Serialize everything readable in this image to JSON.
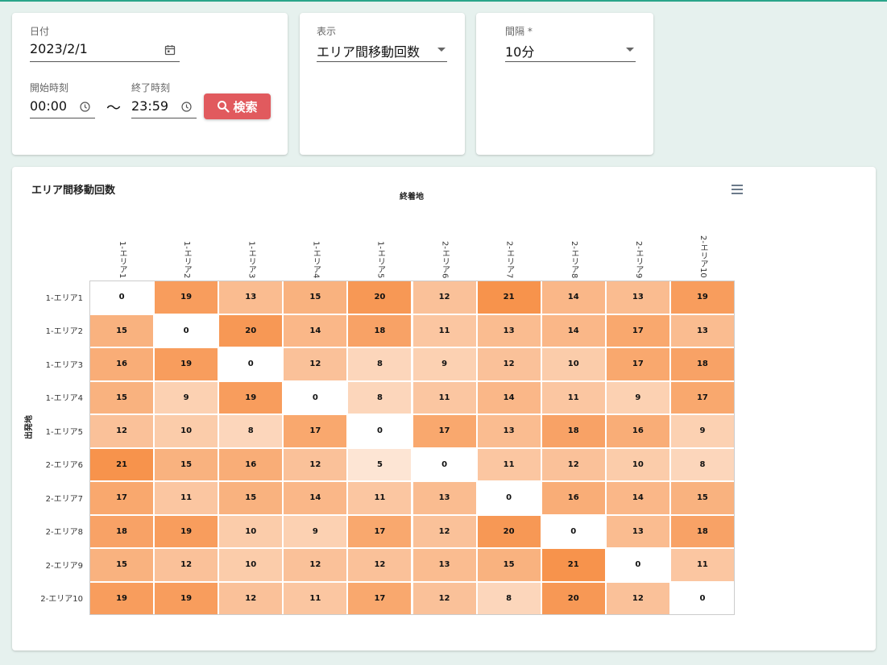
{
  "date_card": {
    "date_label": "日付",
    "date_value": "2023/2/1",
    "start_label": "開始時刻",
    "start_value": "00:00",
    "tilde": "〜",
    "end_label": "終了時刻",
    "end_value": "23:59",
    "search_label": "検索"
  },
  "display_card": {
    "label": "表示",
    "value": "エリア間移動回数"
  },
  "interval_card": {
    "label": "間隔 *",
    "value": "10分"
  },
  "colors": {
    "accent_bar": "#2aa58a",
    "search_button": "#e15a5e",
    "heat_max": "#f7934c",
    "heat_min": "#ffffff"
  },
  "chart_data": {
    "type": "heatmap",
    "title": "エリア間移動回数",
    "xlabel": "終着地",
    "ylabel": "出発地",
    "x_categories": [
      "1-エリア1",
      "1-エリア2",
      "1-エリア3",
      "1-エリア4",
      "1-エリア5",
      "2-エリア6",
      "2-エリア7",
      "2-エリア8",
      "2-エリア9",
      "2-エリア10"
    ],
    "y_categories": [
      "1-エリア1",
      "1-エリア2",
      "1-エリア3",
      "1-エリア4",
      "1-エリア5",
      "2-エリア6",
      "2-エリア7",
      "2-エリア8",
      "2-エリア9",
      "2-エリア10"
    ],
    "values": [
      [
        0,
        19,
        13,
        15,
        20,
        12,
        21,
        14,
        13,
        19
      ],
      [
        15,
        0,
        20,
        14,
        18,
        11,
        13,
        14,
        17,
        13
      ],
      [
        16,
        19,
        0,
        12,
        8,
        9,
        12,
        10,
        17,
        18
      ],
      [
        15,
        9,
        19,
        0,
        8,
        11,
        14,
        11,
        9,
        17
      ],
      [
        12,
        10,
        8,
        17,
        0,
        17,
        13,
        18,
        16,
        9
      ],
      [
        21,
        15,
        16,
        12,
        5,
        0,
        11,
        12,
        10,
        8
      ],
      [
        17,
        11,
        15,
        14,
        11,
        13,
        0,
        16,
        14,
        15
      ],
      [
        18,
        19,
        10,
        9,
        17,
        12,
        20,
        0,
        13,
        18
      ],
      [
        15,
        12,
        10,
        12,
        12,
        13,
        15,
        21,
        0,
        11
      ],
      [
        19,
        19,
        12,
        11,
        17,
        12,
        8,
        20,
        12,
        0
      ]
    ],
    "value_range": [
      0,
      21
    ]
  }
}
